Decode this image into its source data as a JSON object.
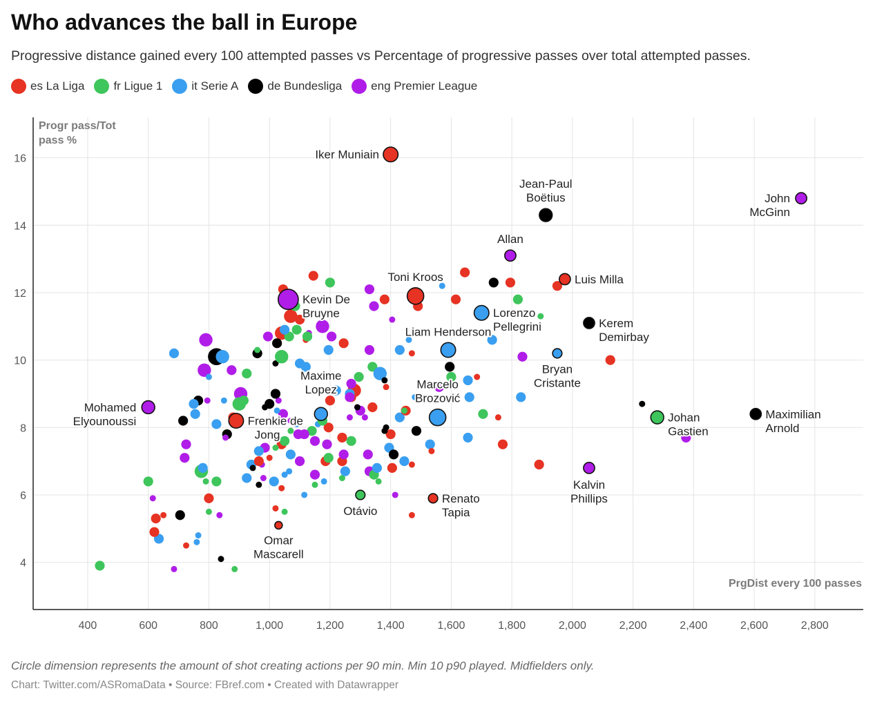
{
  "header": {
    "title": "Who advances the ball in Europe",
    "subtitle": "Progressive distance gained every 100 attempted passes vs Percentage of progressive passes over total attempted passes."
  },
  "legend": [
    {
      "label": "es La Liga",
      "color": "#e63323"
    },
    {
      "label": "fr Ligue 1",
      "color": "#3ec55b"
    },
    {
      "label": "it Serie A",
      "color": "#3a9ff0"
    },
    {
      "label": "de Bundesliga",
      "color": "#000000"
    },
    {
      "label": "eng Premier League",
      "color": "#b01de8"
    }
  ],
  "footer": {
    "notes": "Circle dimension represents the amount of shot creating actions per 90 min. Min 10 p90 played. Midfielders only.",
    "credit": "Chart: Twitter.com/ASRomaData • Source: FBref.com • Created with Datawrapper"
  },
  "chart_data": {
    "type": "scatter",
    "title": "Who advances the ball in Europe",
    "xlabel": "PrgDist every 100 passes",
    "ylabel": "Progr pass/Tot pass %",
    "xlim": [
      220,
      2960
    ],
    "ylim": [
      2.6,
      17.2
    ],
    "xticks": [
      400,
      600,
      800,
      1000,
      1200,
      1400,
      1600,
      1800,
      2000,
      2200,
      2400,
      2600,
      2800
    ],
    "xtick_labels": [
      "400",
      "600",
      "800",
      "1,000",
      "1,200",
      "1,400",
      "1,600",
      "1,800",
      "2,000",
      "2,200",
      "2,400",
      "2,600",
      "2,800"
    ],
    "yticks": [
      4,
      6,
      8,
      10,
      12,
      14,
      16
    ],
    "ytick_labels": [
      "4",
      "6",
      "8",
      "10",
      "12",
      "14",
      "16"
    ],
    "size_encoding": "shot creating actions per 90 min",
    "series_order": [
      "La Liga",
      "Ligue 1",
      "Serie A",
      "Bundesliga",
      "Premier League"
    ],
    "series_colors": {
      "La Liga": "#e63323",
      "Ligue 1": "#3ec55b",
      "Serie A": "#3a9ff0",
      "Bundesliga": "#000000",
      "Premier League": "#b01de8"
    },
    "labeled_points": [
      {
        "name": "Iker Muniain",
        "x": 1400,
        "y": 16.1,
        "league": "La Liga",
        "sca": 3.0
      },
      {
        "name": "Jean-Paul Boëtius",
        "x": 1912,
        "y": 14.3,
        "league": "Bundesliga",
        "sca": 2.5
      },
      {
        "name": "John McGinn",
        "x": 2755,
        "y": 14.8,
        "league": "Premier League",
        "sca": 2.0
      },
      {
        "name": "Allan",
        "x": 1795,
        "y": 13.1,
        "league": "Premier League",
        "sca": 2.0
      },
      {
        "name": "Luis Milla",
        "x": 1975,
        "y": 12.4,
        "league": "La Liga",
        "sca": 2.0
      },
      {
        "name": "Toni Kroos",
        "x": 1482,
        "y": 11.9,
        "league": "La Liga",
        "sca": 3.5
      },
      {
        "name": "Kevin De Bruyne",
        "x": 1062,
        "y": 11.8,
        "league": "Premier League",
        "sca": 4.5
      },
      {
        "name": "Lorenzo Pellegrini",
        "x": 1700,
        "y": 11.4,
        "league": "Serie A",
        "sca": 3.0
      },
      {
        "name": "Kerem Demirbay",
        "x": 2055,
        "y": 11.1,
        "league": "Bundesliga",
        "sca": 2.0
      },
      {
        "name": "Liam Henderson",
        "x": 1590,
        "y": 10.3,
        "league": "Serie A",
        "sca": 3.0
      },
      {
        "name": "Bryan Cristante",
        "x": 1950,
        "y": 10.2,
        "league": "Serie A",
        "sca": 1.5
      },
      {
        "name": "Maxime Lopez",
        "x": 1170,
        "y": 8.4,
        "league": "Serie A",
        "sca": 2.5
      },
      {
        "name": "Marcelo Brozović",
        "x": 1555,
        "y": 8.3,
        "league": "Serie A",
        "sca": 3.5
      },
      {
        "name": "Mohamed Elyounoussi",
        "x": 600,
        "y": 8.6,
        "league": "Premier League",
        "sca": 2.5
      },
      {
        "name": "Frenkie de Jong",
        "x": 890,
        "y": 8.2,
        "league": "La Liga",
        "sca": 3.0
      },
      {
        "name": "Johan Gastien",
        "x": 2280,
        "y": 8.3,
        "league": "Ligue 1",
        "sca": 2.5
      },
      {
        "name": "Maximilian Arnold",
        "x": 2605,
        "y": 8.4,
        "league": "Bundesliga",
        "sca": 2.0
      },
      {
        "name": "Kalvin Phillips",
        "x": 2055,
        "y": 6.8,
        "league": "Premier League",
        "sca": 2.0
      },
      {
        "name": "Renato Tapia",
        "x": 1540,
        "y": 5.9,
        "league": "La Liga",
        "sca": 1.5
      },
      {
        "name": "Otávio",
        "x": 1300,
        "y": 6.0,
        "league": "Ligue 1",
        "sca": 1.5
      },
      {
        "name": "Omar Mascarell",
        "x": 1030,
        "y": 5.1,
        "league": "La Liga",
        "sca": 1.0
      }
    ],
    "points": [
      [
        1,
        440,
        3.9,
        2
      ],
      [
        3,
        840,
        4.1,
        1
      ],
      [
        1,
        885,
        3.8,
        1
      ],
      [
        4,
        685,
        3.8,
        1
      ],
      [
        0,
        725,
        4.5,
        1
      ],
      [
        2,
        635,
        4.7,
        2
      ],
      [
        2,
        760,
        4.6,
        1
      ],
      [
        2,
        765,
        4.8,
        1
      ],
      [
        0,
        620,
        4.9,
        2
      ],
      [
        0,
        625,
        5.3,
        2
      ],
      [
        0,
        650,
        5.4,
        1
      ],
      [
        3,
        705,
        5.4,
        2
      ],
      [
        1,
        800,
        5.5,
        1
      ],
      [
        4,
        835,
        5.4,
        1
      ],
      [
        0,
        1020,
        5.6,
        1
      ],
      [
        1,
        1050,
        5.5,
        1
      ],
      [
        0,
        1470,
        5.4,
        1
      ],
      [
        0,
        800,
        5.9,
        2
      ],
      [
        4,
        615,
        5.9,
        1
      ],
      [
        2,
        1115,
        6.0,
        1
      ],
      [
        4,
        1415,
        6.0,
        1
      ],
      [
        1,
        600,
        6.4,
        2
      ],
      [
        1,
        775,
        6.7,
        3
      ],
      [
        2,
        780,
        6.8,
        2
      ],
      [
        1,
        790,
        6.4,
        1
      ],
      [
        1,
        825,
        6.4,
        2
      ],
      [
        4,
        720,
        7.1,
        2
      ],
      [
        4,
        725,
        7.5,
        2
      ],
      [
        2,
        940,
        6.9,
        2
      ],
      [
        3,
        945,
        6.8,
        1
      ],
      [
        2,
        925,
        6.5,
        2
      ],
      [
        4,
        975,
        6.9,
        1
      ],
      [
        4,
        980,
        6.5,
        1
      ],
      [
        3,
        965,
        6.3,
        1
      ],
      [
        0,
        965,
        7.0,
        2
      ],
      [
        0,
        1000,
        7.1,
        1
      ],
      [
        2,
        1015,
        6.4,
        2
      ],
      [
        0,
        1040,
        6.2,
        1
      ],
      [
        2,
        1050,
        6.6,
        1
      ],
      [
        2,
        1065,
        6.7,
        1
      ],
      [
        4,
        985,
        7.4,
        2
      ],
      [
        2,
        965,
        7.3,
        2
      ],
      [
        0,
        1040,
        7.5,
        2
      ],
      [
        1,
        1020,
        7.4,
        1
      ],
      [
        1,
        1050,
        7.6,
        2
      ],
      [
        2,
        1070,
        7.2,
        2
      ],
      [
        4,
        1100,
        7.0,
        2
      ],
      [
        4,
        1150,
        6.6,
        2
      ],
      [
        1,
        1150,
        6.3,
        1
      ],
      [
        2,
        1180,
        6.4,
        1
      ],
      [
        0,
        1185,
        7.0,
        2
      ],
      [
        1,
        1195,
        7.1,
        2
      ],
      [
        4,
        1190,
        7.5,
        2
      ],
      [
        0,
        1195,
        8.0,
        2
      ],
      [
        4,
        1150,
        7.6,
        2
      ],
      [
        1,
        1140,
        7.9,
        2
      ],
      [
        2,
        1160,
        8.1,
        1
      ],
      [
        4,
        1095,
        7.8,
        2
      ],
      [
        4,
        1115,
        7.8,
        2
      ],
      [
        2,
        1090,
        8.1,
        1
      ],
      [
        1,
        1070,
        7.9,
        1
      ],
      [
        4,
        1070,
        8.2,
        1
      ],
      [
        4,
        1045,
        8.4,
        2
      ],
      [
        2,
        1025,
        8.5,
        1
      ],
      [
        3,
        985,
        8.6,
        1
      ],
      [
        3,
        1000,
        8.7,
        2
      ],
      [
        4,
        1030,
        8.8,
        1
      ],
      [
        3,
        1020,
        9.0,
        2
      ],
      [
        4,
        905,
        9.0,
        3
      ],
      [
        1,
        900,
        8.7,
        3
      ],
      [
        1,
        915,
        8.8,
        2
      ],
      [
        2,
        850,
        8.8,
        1
      ],
      [
        2,
        825,
        8.1,
        2
      ],
      [
        3,
        860,
        7.8,
        2
      ],
      [
        4,
        855,
        7.7,
        1
      ],
      [
        0,
        880,
        8.3,
        2
      ],
      [
        3,
        765,
        8.8,
        2
      ],
      [
        2,
        750,
        8.7,
        2
      ],
      [
        2,
        755,
        8.4,
        2
      ],
      [
        4,
        795,
        8.8,
        1
      ],
      [
        3,
        715,
        8.2,
        2
      ],
      [
        2,
        685,
        10.2,
        2
      ],
      [
        3,
        825,
        10.1,
        4
      ],
      [
        2,
        845,
        10.1,
        3
      ],
      [
        4,
        790,
        10.6,
        3
      ],
      [
        4,
        785,
        9.7,
        3
      ],
      [
        2,
        800,
        9.5,
        1
      ],
      [
        4,
        875,
        9.7,
        2
      ],
      [
        1,
        925,
        9.6,
        2
      ],
      [
        3,
        960,
        10.2,
        2
      ],
      [
        1,
        960,
        10.3,
        1
      ],
      [
        3,
        1020,
        9.9,
        1
      ],
      [
        1,
        1040,
        10.1,
        3
      ],
      [
        0,
        1040,
        10.8,
        3
      ],
      [
        1,
        1065,
        10.7,
        2
      ],
      [
        3,
        1025,
        10.5,
        2
      ],
      [
        4,
        995,
        10.7,
        2
      ],
      [
        2,
        1050,
        10.9,
        2
      ],
      [
        1,
        1090,
        10.9,
        2
      ],
      [
        0,
        1100,
        11.2,
        2
      ],
      [
        0,
        1120,
        10.6,
        1
      ],
      [
        4,
        1130,
        10.8,
        1
      ],
      [
        2,
        1100,
        9.9,
        2
      ],
      [
        2,
        1120,
        9.8,
        2
      ],
      [
        2,
        1195,
        10.3,
        2
      ],
      [
        0,
        1245,
        10.5,
        2
      ],
      [
        4,
        1175,
        11.0,
        3
      ],
      [
        4,
        1205,
        10.7,
        2
      ],
      [
        1,
        1125,
        10.7,
        2
      ],
      [
        0,
        1070,
        11.3,
        3
      ],
      [
        1,
        1085,
        11.6,
        2
      ],
      [
        0,
        1045,
        12.1,
        2
      ],
      [
        0,
        1145,
        12.5,
        2
      ],
      [
        1,
        1200,
        12.3,
        2
      ],
      [
        4,
        1330,
        12.1,
        2
      ],
      [
        0,
        1380,
        11.8,
        2
      ],
      [
        0,
        1490,
        11.6,
        2
      ],
      [
        4,
        1345,
        11.6,
        2
      ],
      [
        4,
        1405,
        11.2,
        1
      ],
      [
        2,
        1570,
        12.2,
        1
      ],
      [
        0,
        1615,
        11.8,
        2
      ],
      [
        0,
        1645,
        12.6,
        2
      ],
      [
        3,
        1740,
        12.3,
        2
      ],
      [
        0,
        1795,
        12.3,
        2
      ],
      [
        0,
        1950,
        12.2,
        2
      ],
      [
        1,
        1820,
        11.8,
        2
      ],
      [
        1,
        1895,
        11.3,
        1
      ],
      [
        2,
        1735,
        10.6,
        2
      ],
      [
        2,
        1460,
        10.6,
        1
      ],
      [
        2,
        1430,
        10.3,
        2
      ],
      [
        0,
        1470,
        10.2,
        1
      ],
      [
        4,
        1330,
        10.3,
        2
      ],
      [
        1,
        1600,
        9.5,
        2
      ],
      [
        3,
        1595,
        9.8,
        2
      ],
      [
        0,
        1685,
        9.5,
        1
      ],
      [
        2,
        1655,
        9.4,
        2
      ],
      [
        2,
        1660,
        8.9,
        2
      ],
      [
        2,
        1830,
        8.9,
        2
      ],
      [
        1,
        1705,
        8.4,
        2
      ],
      [
        0,
        1755,
        8.3,
        1
      ],
      [
        0,
        1770,
        7.5,
        2
      ],
      [
        2,
        1655,
        7.7,
        2
      ],
      [
        2,
        1530,
        7.5,
        2
      ],
      [
        0,
        1535,
        7.3,
        1
      ],
      [
        2,
        1480,
        8.9,
        1
      ],
      [
        2,
        1430,
        8.3,
        2
      ],
      [
        0,
        1450,
        8.5,
        2
      ],
      [
        1,
        1445,
        8.5,
        1
      ],
      [
        3,
        1485,
        7.9,
        2
      ],
      [
        0,
        1400,
        7.8,
        2
      ],
      [
        3,
        1380,
        7.9,
        1
      ],
      [
        2,
        1395,
        7.4,
        2
      ],
      [
        3,
        1410,
        7.2,
        2
      ],
      [
        2,
        1445,
        7.0,
        2
      ],
      [
        0,
        1470,
        6.9,
        1
      ],
      [
        0,
        1405,
        6.8,
        2
      ],
      [
        4,
        1330,
        6.7,
        2
      ],
      [
        4,
        1325,
        7.2,
        2
      ],
      [
        1,
        1345,
        6.6,
        2
      ],
      [
        1,
        1360,
        6.4,
        1
      ],
      [
        1,
        1270,
        7.6,
        2
      ],
      [
        0,
        1240,
        7.7,
        2
      ],
      [
        0,
        1240,
        7.0,
        2
      ],
      [
        4,
        1245,
        7.2,
        2
      ],
      [
        1,
        1240,
        6.5,
        1
      ],
      [
        2,
        1250,
        6.7,
        2
      ],
      [
        4,
        1265,
        8.3,
        1
      ],
      [
        4,
        1315,
        8.3,
        1
      ],
      [
        4,
        1300,
        8.5,
        2
      ],
      [
        3,
        1290,
        8.6,
        1
      ],
      [
        0,
        1270,
        8.9,
        2
      ],
      [
        0,
        1280,
        9.1,
        3
      ],
      [
        4,
        1270,
        9.3,
        2
      ],
      [
        1,
        1295,
        9.5,
        2
      ],
      [
        2,
        1265,
        9.0,
        2
      ],
      [
        4,
        1265,
        8.9,
        2
      ],
      [
        0,
        1340,
        8.6,
        2
      ],
      [
        1,
        1340,
        9.8,
        2
      ],
      [
        2,
        1365,
        9.6,
        3
      ],
      [
        3,
        1380,
        9.4,
        1
      ],
      [
        0,
        1385,
        9.2,
        1
      ],
      [
        0,
        1200,
        8.8,
        2
      ],
      [
        2,
        1220,
        9.1,
        2
      ],
      [
        1,
        1175,
        8.2,
        2
      ],
      [
        3,
        1385,
        8.0,
        1
      ],
      [
        2,
        1355,
        6.8,
        2
      ],
      [
        0,
        1890,
        6.9,
        2
      ],
      [
        0,
        2125,
        10.0,
        2
      ],
      [
        3,
        2230,
        8.7,
        1
      ],
      [
        4,
        2375,
        7.7,
        2
      ],
      [
        4,
        1835,
        10.1,
        2
      ],
      [
        4,
        1560,
        9.2,
        2
      ]
    ]
  }
}
